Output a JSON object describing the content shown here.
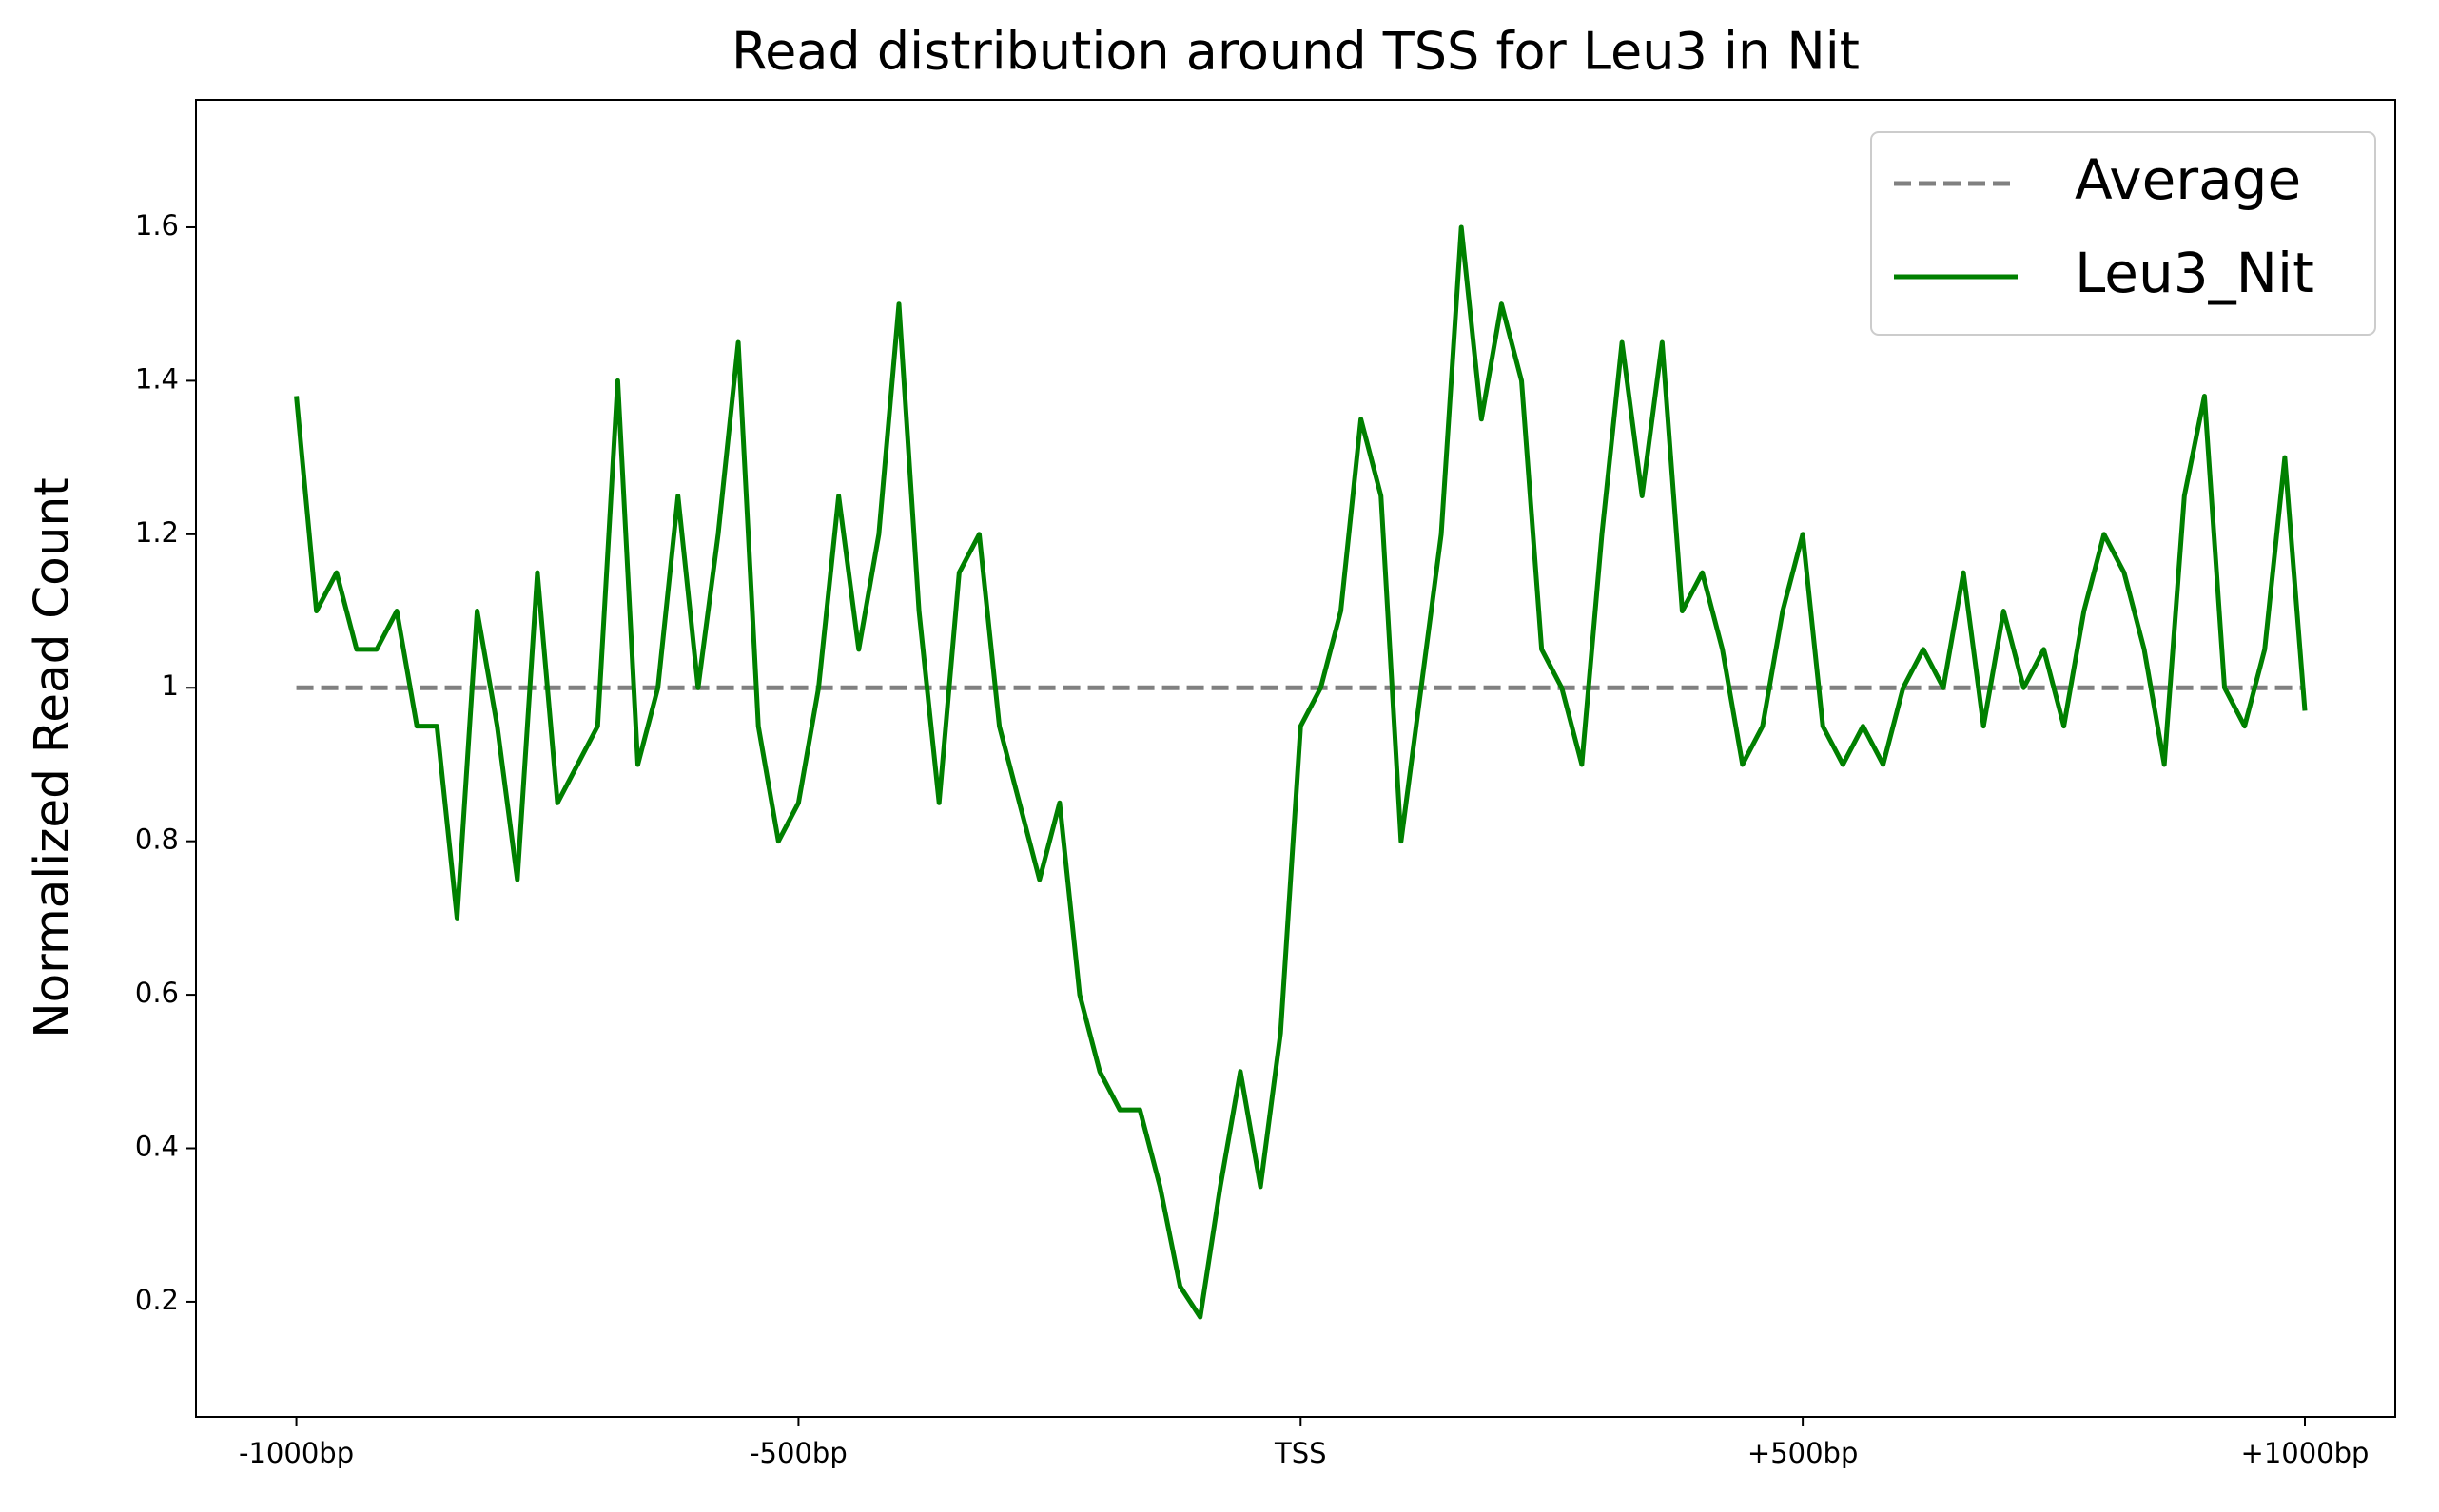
{
  "chart_data": {
    "type": "line",
    "title": "Read distribution around TSS for Leu3 in Nit",
    "ylabel": "Normalized Read Count",
    "xlim": [
      -1100,
      1090
    ],
    "ylim": [
      0.05,
      1.766
    ],
    "xticks": [
      {
        "value": -1000,
        "label": "-1000bp"
      },
      {
        "value": -500,
        "label": "-500bp"
      },
      {
        "value": 0,
        "label": "TSS"
      },
      {
        "value": 500,
        "label": "+500bp"
      },
      {
        "value": 1000,
        "label": "+1000bp"
      }
    ],
    "yticks": [
      0.2,
      0.4,
      0.6,
      0.8,
      1.0,
      1.2,
      1.4,
      1.6
    ],
    "legend": "upper right",
    "series": [
      {
        "name": "Average",
        "color": "#808080",
        "linestyle": "dashed",
        "x": [
          -1000,
          1000
        ],
        "values": [
          1.0,
          1.0
        ]
      },
      {
        "name": "Leu3_Nit",
        "color": "#008000",
        "linestyle": "solid",
        "x": [
          -1000,
          -980,
          -960,
          -940,
          -920,
          -900,
          -880,
          -860,
          -840,
          -820,
          -800,
          -780,
          -760,
          -740,
          -720,
          -700,
          -680,
          -660,
          -640,
          -620,
          -600,
          -580,
          -560,
          -540,
          -520,
          -500,
          -480,
          -460,
          -440,
          -420,
          -400,
          -380,
          -360,
          -340,
          -320,
          -300,
          -280,
          -260,
          -240,
          -220,
          -200,
          -180,
          -160,
          -140,
          -120,
          -100,
          -80,
          -60,
          -40,
          -20,
          0,
          20,
          40,
          60,
          80,
          100,
          120,
          140,
          160,
          180,
          200,
          220,
          240,
          260,
          280,
          300,
          320,
          340,
          360,
          380,
          400,
          420,
          440,
          460,
          480,
          500,
          520,
          540,
          560,
          580,
          600,
          620,
          640,
          660,
          680,
          700,
          720,
          740,
          760,
          780,
          800,
          820,
          840,
          860,
          880,
          900,
          920,
          940,
          960,
          980,
          1000
        ],
        "values": [
          1.38,
          1.1,
          1.15,
          1.05,
          1.05,
          1.1,
          0.95,
          0.95,
          0.7,
          1.1,
          0.95,
          0.75,
          1.15,
          0.85,
          0.9,
          0.95,
          1.4,
          0.9,
          1.0,
          1.25,
          1.0,
          1.2,
          1.45,
          0.95,
          0.8,
          0.85,
          1.0,
          1.25,
          1.05,
          1.2,
          1.5,
          1.1,
          0.85,
          1.15,
          1.2,
          0.95,
          0.85,
          0.75,
          0.85,
          0.6,
          0.5,
          0.45,
          0.45,
          0.35,
          0.22,
          0.18,
          0.35,
          0.5,
          0.35,
          0.55,
          0.95,
          1.0,
          1.1,
          1.35,
          1.25,
          0.8,
          1.0,
          1.2,
          1.6,
          1.35,
          1.5,
          1.4,
          1.05,
          1.0,
          0.9,
          1.2,
          1.45,
          1.25,
          1.45,
          1.1,
          1.15,
          1.05,
          0.9,
          0.95,
          1.1,
          1.2,
          0.95,
          0.9,
          0.95,
          0.9,
          1.0,
          1.05,
          1.0,
          1.15,
          0.95,
          1.1,
          1.0,
          1.05,
          0.95,
          1.1,
          1.2,
          1.15,
          1.05,
          0.9,
          1.25,
          1.38,
          1.0,
          0.95,
          1.05,
          1.3,
          0.97
        ]
      }
    ]
  }
}
